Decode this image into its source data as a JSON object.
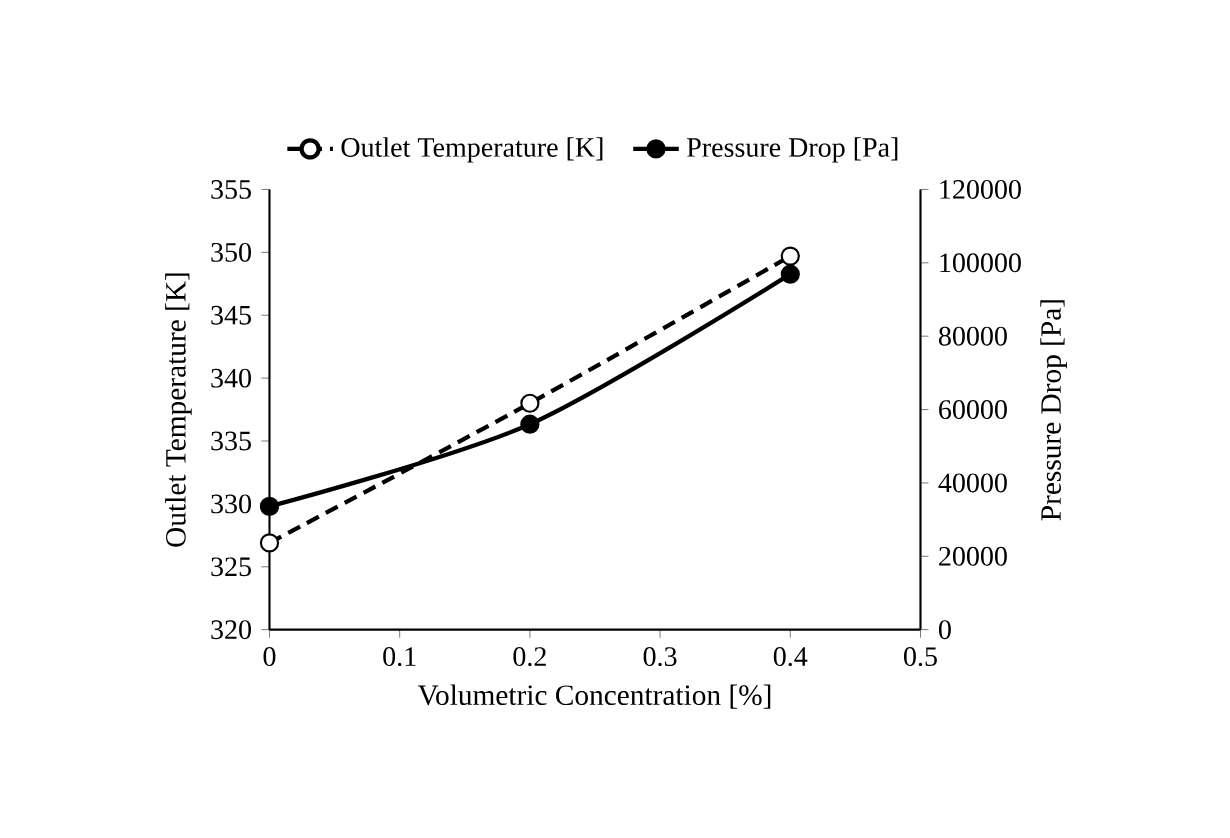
{
  "chart_data": {
    "type": "line",
    "xlabel": "Volumetric Concentration [%]",
    "ylabel": "Outlet Temperature [K]",
    "y2label": "Pressure Drop [Pa]",
    "x": [
      0,
      0.2,
      0.4
    ],
    "series": [
      {
        "name": "Outlet Temperature [K]",
        "color": "#000000",
        "values": [
          326.9,
          338.0,
          349.7
        ],
        "line_style": "dashed",
        "marker": "circle"
      },
      {
        "name": "Pressure Drop [Pa]",
        "color": "#000000",
        "values": [
          33600,
          56000,
          96900
        ],
        "axis": "y2",
        "line_style": "solid",
        "marker": "circle"
      }
    ],
    "xlim": [
      0,
      0.5
    ],
    "xticks": [
      0,
      0.1,
      0.2,
      0.3,
      0.4,
      0.5
    ],
    "ylim": [
      320,
      355
    ],
    "yticks": [
      320,
      325,
      330,
      335,
      340,
      345,
      350,
      355
    ],
    "y2lim": [
      0,
      120000
    ],
    "y2ticks": [
      0,
      20000,
      40000,
      60000,
      80000,
      100000,
      120000
    ],
    "grid": false,
    "legend": "top"
  }
}
